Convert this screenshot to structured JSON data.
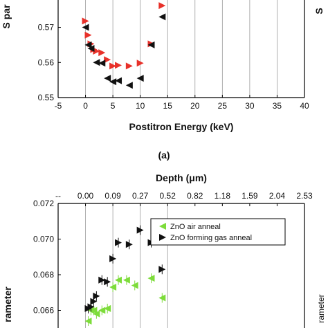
{
  "chart_data": [
    {
      "type": "scatter",
      "panel_label": "(a)",
      "xlabel": "Postitron Energy (keV)",
      "ylabel_visible": "S par",
      "right_label_fragment": "S",
      "xlim": [
        -5,
        40
      ],
      "ylim": [
        0.55,
        0.58
      ],
      "xticks": [
        -5,
        0,
        5,
        10,
        15,
        20,
        25,
        30,
        35,
        40
      ],
      "xtick_labels": [
        "-5",
        "0",
        "5",
        "10",
        "15",
        "20",
        "25",
        "30",
        "35",
        "40"
      ],
      "yticks": [
        0.55,
        0.56,
        0.57
      ],
      "ytick_labels": [
        "0.55",
        "0.56",
        "0.57"
      ],
      "vgrid_x": [
        0,
        5,
        10,
        15,
        20,
        25,
        30,
        35
      ],
      "series": [
        {
          "color": "#e8312a",
          "marker": "triangle-right",
          "x": [
            0,
            0.5,
            1,
            1.5,
            2,
            3,
            4,
            5,
            6,
            8,
            10,
            12,
            14
          ],
          "y": [
            0.5718,
            0.5678,
            0.5653,
            0.5637,
            0.5632,
            0.5628,
            0.5608,
            0.559,
            0.5592,
            0.559,
            0.5598,
            0.5653,
            0.5762
          ]
        },
        {
          "color": "#111111",
          "marker": "triangle-left",
          "x": [
            0,
            0.5,
            1,
            2,
            3,
            4,
            5,
            6,
            8,
            10,
            12,
            14
          ],
          "y": [
            0.57,
            0.565,
            0.564,
            0.56,
            0.5598,
            0.5555,
            0.5545,
            0.5548,
            0.5535,
            0.5555,
            0.565,
            0.573
          ]
        }
      ]
    },
    {
      "type": "scatter",
      "xlabel_top": "Depth (μm)",
      "ylabel_visible": "rameter",
      "right_label_fragment": "rameter",
      "top_tick_labels": [
        "--",
        "0.00",
        "0.09",
        "0.27",
        "0.52",
        "0.82",
        "1.18",
        "1.59",
        "2.04",
        "2.53"
      ],
      "xlim": [
        -5,
        40
      ],
      "ylim": [
        0.064,
        0.072
      ],
      "yticks": [
        0.066,
        0.068,
        0.07,
        0.072
      ],
      "ytick_labels": [
        "0.066",
        "0.068",
        "0.070",
        "0.072"
      ],
      "vgrid_x": [
        0,
        5,
        10,
        15
      ],
      "legend": [
        "ZnO air anneal",
        "ZnO forming gas anneal"
      ],
      "series": [
        {
          "name": "ZnO air anneal",
          "color": "#7ddc3a",
          "marker": "triangle-left",
          "x": [
            0.5,
            1,
            1.5,
            2,
            3,
            4,
            5,
            6,
            7.5,
            9,
            12,
            14
          ],
          "y": [
            0.0654,
            0.066,
            0.066,
            0.0658,
            0.066,
            0.0661,
            0.0673,
            0.0677,
            0.0677,
            0.0674,
            0.0678,
            0.0667
          ]
        },
        {
          "name": "ZnO forming gas anneal",
          "color": "#111111",
          "marker": "triangle-right",
          "x": [
            0.5,
            1,
            1.5,
            2,
            3,
            4,
            5,
            6,
            8,
            10,
            12,
            14
          ],
          "y": [
            0.0661,
            0.0662,
            0.0665,
            0.0668,
            0.0677,
            0.0676,
            0.0689,
            0.0698,
            0.0697,
            0.0705,
            0.0698,
            0.0683
          ]
        }
      ]
    }
  ]
}
